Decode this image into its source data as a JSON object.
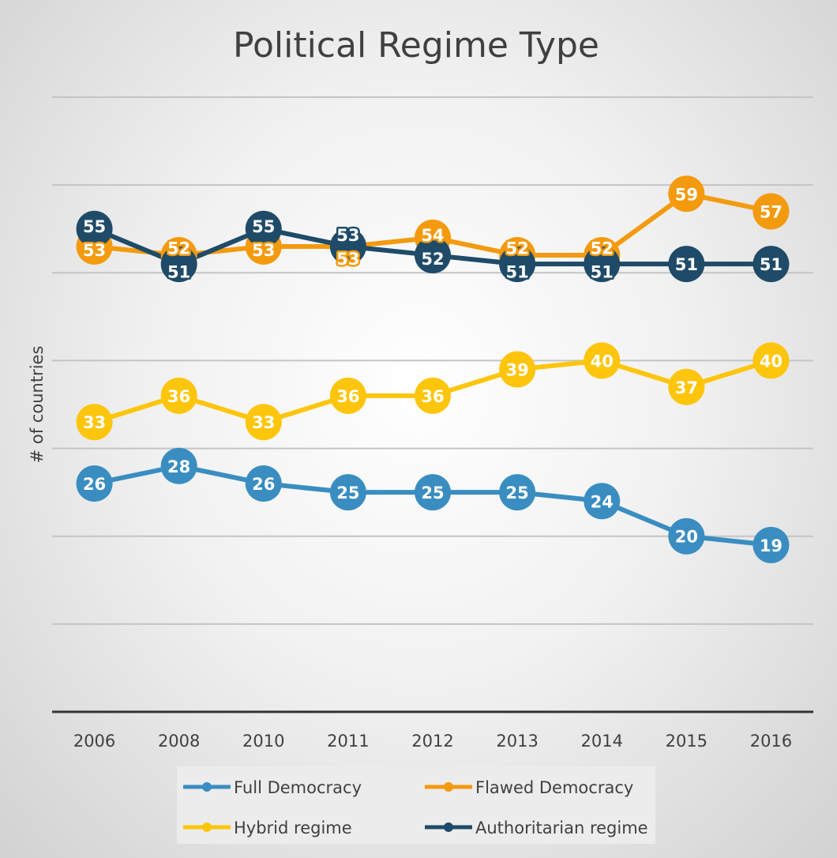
{
  "chart_data": {
    "type": "line",
    "title": "Political Regime Type",
    "xlabel": "",
    "ylabel": "# of countries",
    "ylim": [
      0,
      70
    ],
    "y_tick_labels_shown": false,
    "grid": true,
    "legend_position": "bottom",
    "categories": [
      "2006",
      "2008",
      "2010",
      "2011",
      "2012",
      "2013",
      "2014",
      "2015",
      "2016"
    ],
    "series": [
      {
        "name": "Full Democracy",
        "color": "#3a8dc0",
        "values": [
          26,
          28,
          26,
          25,
          25,
          25,
          24,
          20,
          19
        ]
      },
      {
        "name": "Flawed Democracy",
        "color": "#f39a0f",
        "values": [
          53,
          52,
          53,
          53,
          54,
          52,
          52,
          59,
          57
        ]
      },
      {
        "name": "Hybrid regime",
        "color": "#fdc50c",
        "values": [
          33,
          36,
          33,
          36,
          36,
          39,
          40,
          37,
          40
        ]
      },
      {
        "name": "Authoritarian regime",
        "color": "#1f4b68",
        "values": [
          55,
          51,
          55,
          53,
          52,
          51,
          51,
          51,
          51
        ]
      }
    ]
  }
}
